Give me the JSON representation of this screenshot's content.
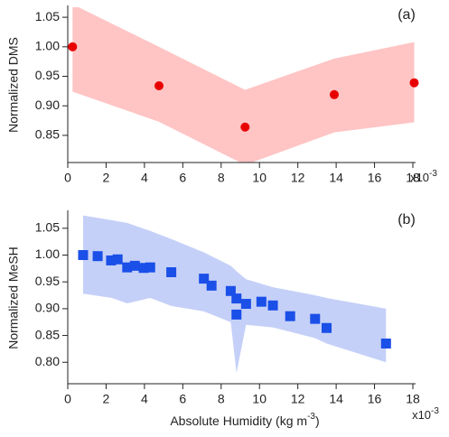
{
  "chart_data": [
    {
      "type": "scatter",
      "panel_label": "(a)",
      "y_label": "Normalized DMS",
      "x_multiplier": "x10",
      "x_multiplier_sup": "-3",
      "x": [
        0.25,
        4.76,
        9.25,
        13.9,
        18.07
      ],
      "y": [
        1.0,
        0.934,
        0.864,
        0.919,
        0.939
      ],
      "color": "#e80000",
      "marker": "circle",
      "band": {
        "x": [
          0.25,
          4.76,
          9.25,
          13.9,
          18.07
        ],
        "upper": [
          1.072,
          1.0,
          0.927,
          0.98,
          1.008
        ],
        "lower": [
          0.924,
          0.873,
          0.8,
          0.855,
          0.872
        ],
        "color": "#ffc4c4"
      },
      "xlim": [
        0,
        18
      ],
      "ylim": [
        0.804,
        1.067
      ],
      "xticks": [
        0,
        2,
        4,
        6,
        8,
        10,
        12,
        14,
        16,
        18
      ],
      "yticks": [
        0.85,
        {
          "value": 0.9,
          "label": "0.90"
        },
        0.95,
        {
          "value": 1.0,
          "label": "1.00"
        },
        1.05
      ]
    },
    {
      "type": "scatter",
      "panel_label": "(b)",
      "y_label": "Normalized MeSH",
      "x_label": "Absolute Humidity (kg m",
      "x_label_sup": "-3",
      "x_label_end": ")",
      "x_multiplier": "x10",
      "x_multiplier_sup": "-3",
      "x": [
        0.8,
        1.56,
        2.26,
        2.6,
        3.1,
        3.5,
        3.96,
        4.3,
        5.4,
        7.1,
        7.5,
        8.5,
        8.8,
        8.8,
        9.3,
        10.1,
        10.7,
        11.6,
        12.9,
        13.5,
        16.6
      ],
      "y": [
        1.0,
        0.998,
        0.99,
        0.992,
        0.977,
        0.98,
        0.976,
        0.977,
        0.968,
        0.956,
        0.943,
        0.933,
        0.919,
        0.889,
        0.909,
        0.913,
        0.906,
        0.886,
        0.881,
        0.864,
        0.835
      ],
      "color": "#1a4fe8",
      "marker": "square",
      "band": {
        "x": [
          0.8,
          2.3,
          3.1,
          4.3,
          5.4,
          7.1,
          8.5,
          8.8,
          9.3,
          10.7,
          12.9,
          13.5,
          16.6
        ],
        "upper": [
          1.074,
          1.065,
          1.06,
          1.045,
          1.03,
          1.005,
          0.98,
          0.97,
          0.955,
          0.94,
          0.925,
          0.92,
          0.9
        ],
        "lower": [
          0.928,
          0.92,
          0.91,
          0.92,
          0.905,
          0.895,
          0.875,
          0.78,
          0.87,
          0.865,
          0.845,
          0.835,
          0.8
        ],
        "color": "#c5d0f8"
      },
      "xlim": [
        0,
        18
      ],
      "ylim": [
        0.76,
        1.08
      ],
      "xticks": [
        0,
        2,
        4,
        6,
        8,
        10,
        12,
        14,
        16,
        18
      ],
      "yticks": [
        {
          "value": 0.8,
          "label": "0.80"
        },
        0.85,
        {
          "value": 0.9,
          "label": "0.90"
        },
        0.95,
        {
          "value": 1.0,
          "label": "1.00"
        },
        1.05
      ]
    }
  ]
}
